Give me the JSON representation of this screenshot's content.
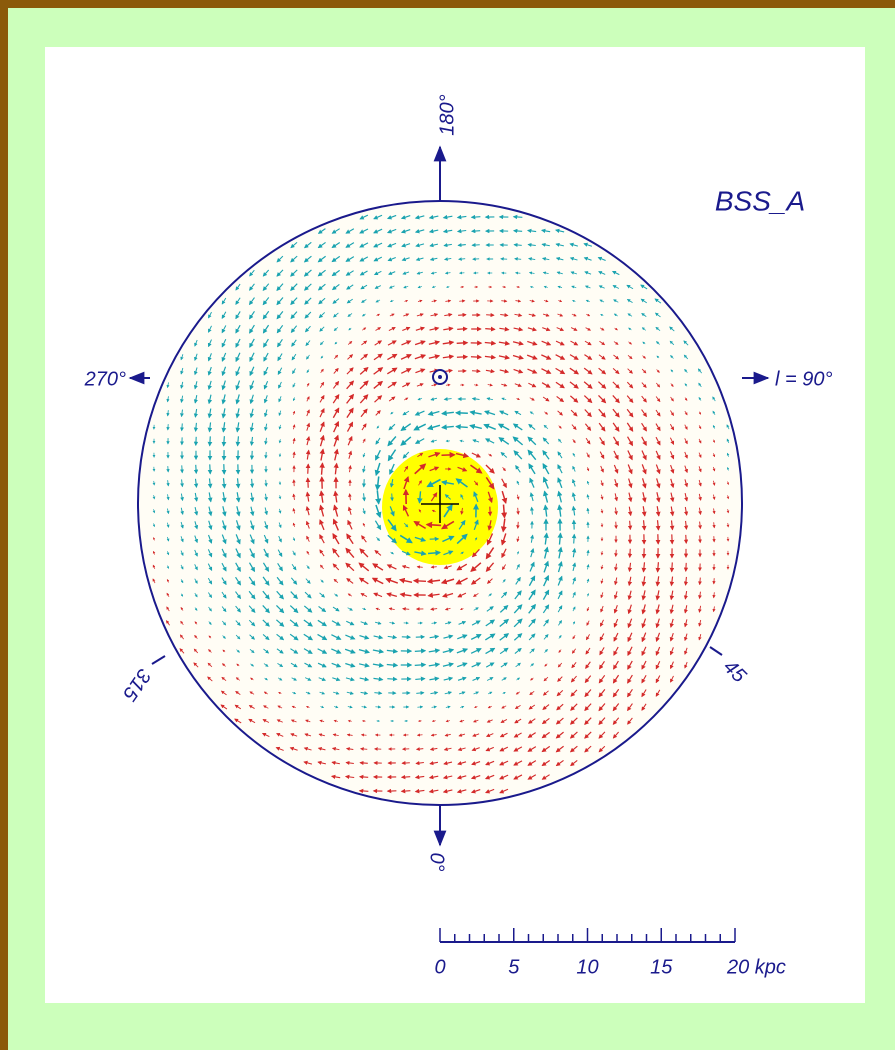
{
  "title": "BSS_A",
  "directions": {
    "top": "180°",
    "right": "l = 90°",
    "left": "270°",
    "bottom": "0°",
    "lower_right": "45",
    "lower_left": "315"
  },
  "scale_bar": {
    "labels": [
      "0",
      "5",
      "10",
      "15",
      "20 kpc"
    ]
  }
}
